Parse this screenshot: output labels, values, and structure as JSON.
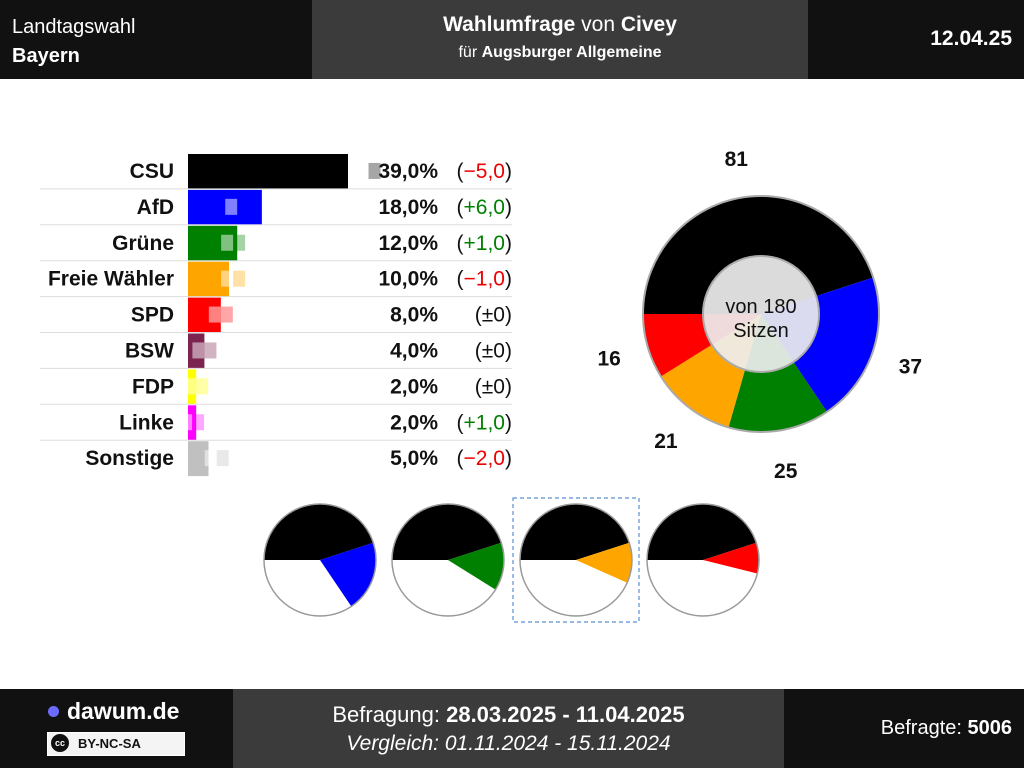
{
  "header": {
    "election_line1": "Landtagswahl",
    "election_line2": "Bayern",
    "title_bold1": "Wahlumfrage",
    "title_plain1": " von ",
    "title_bold2": "Civey",
    "subtitle_plain": "für ",
    "subtitle_bold": "Augsburger Allgemeine",
    "date": "12.04.25"
  },
  "footer": {
    "site": "dawum.de",
    "license": "BY-NC-SA",
    "license_icon": "cc",
    "survey_label": "Befragung: ",
    "survey_period": "28.03.2025 - 11.04.2025",
    "compare_text": "Vergleich: 01.11.2024 - 15.11.2024",
    "respondents_label": "Befragte: ",
    "respondents": "5006"
  },
  "chart_data": [
    {
      "type": "bar",
      "orientation": "horizontal",
      "categories": [
        "CSU",
        "AfD",
        "Grüne",
        "Freie Wähler",
        "SPD",
        "BSW",
        "FDP",
        "Linke",
        "Sonstige"
      ],
      "values": [
        39.0,
        18.0,
        12.0,
        10.0,
        8.0,
        4.0,
        2.0,
        2.0,
        5.0
      ],
      "previous": [
        44.0,
        12.0,
        11.0,
        11.0,
        8.0,
        4.0,
        2.0,
        1.0,
        7.0
      ],
      "value_labels": [
        "39,0%",
        "18,0%",
        "12,0%",
        "10,0%",
        "8,0%",
        "4,0%",
        "2,0%",
        "2,0%",
        "5,0%"
      ],
      "change_labels": [
        "(−5,0)",
        "(+6,0)",
        "(+1,0)",
        "(−1,0)",
        "(±0)",
        "(±0)",
        "(±0)",
        "(+1,0)",
        "(−2,0)"
      ],
      "change_kind": [
        "neg",
        "pos",
        "pos",
        "neg",
        "zero",
        "zero",
        "zero",
        "pos",
        "neg"
      ],
      "colors": [
        "#000000",
        "#0000ff",
        "#008000",
        "#ffa500",
        "#ff0000",
        "#7b2450",
        "#ffff00",
        "#ff00ff",
        "#c0c0c0"
      ],
      "xlim": [
        0,
        50
      ]
    },
    {
      "type": "pie",
      "variant": "donut",
      "center_label_line1": "von 180",
      "center_label_line2": "Sitzen",
      "total": 180,
      "labels": [
        "CSU",
        "AfD",
        "Grüne",
        "Freie Wähler",
        "SPD"
      ],
      "values": [
        81,
        37,
        25,
        21,
        16
      ],
      "value_labels": [
        "81",
        "37",
        "25",
        "21",
        "16"
      ],
      "colors": [
        "#000000",
        "#0000ff",
        "#008000",
        "#ffa500",
        "#ff0000"
      ]
    },
    {
      "type": "pie",
      "variant": "coalitions",
      "total": 180,
      "coalitions": [
        {
          "labels": [
            "CSU",
            "AfD"
          ],
          "values": [
            81,
            37
          ],
          "colors": [
            "#000000",
            "#0000ff"
          ],
          "highlight": false
        },
        {
          "labels": [
            "CSU",
            "Grüne"
          ],
          "values": [
            81,
            25
          ],
          "colors": [
            "#000000",
            "#008000"
          ],
          "highlight": false
        },
        {
          "labels": [
            "CSU",
            "Freie Wähler"
          ],
          "values": [
            81,
            21
          ],
          "colors": [
            "#000000",
            "#ffa500"
          ],
          "highlight": true
        },
        {
          "labels": [
            "CSU",
            "SPD"
          ],
          "values": [
            81,
            16
          ],
          "colors": [
            "#000000",
            "#ff0000"
          ],
          "highlight": false
        }
      ]
    }
  ],
  "colors": {
    "header_bg": "#111111",
    "header_mid_bg": "#3b3b3b",
    "negative": "#ee0000",
    "positive": "#008000",
    "highlight_border": "#5b8fd6"
  }
}
